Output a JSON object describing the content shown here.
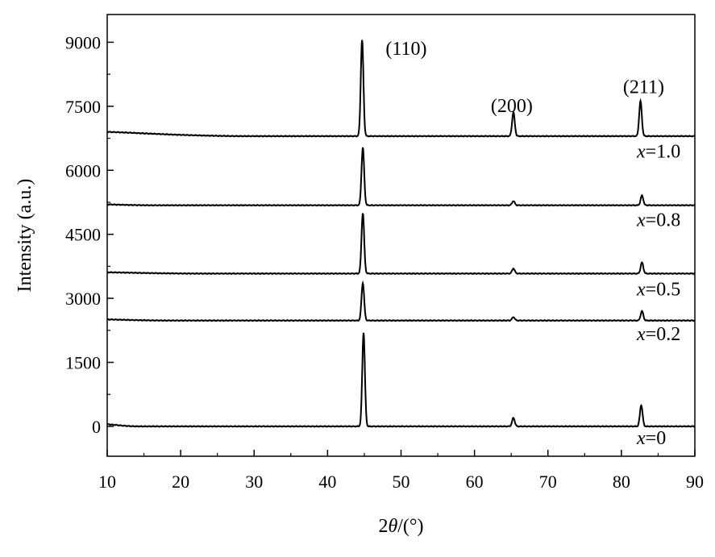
{
  "chart_data": {
    "type": "line",
    "xlabel": "2θ/(°)",
    "ylabel": "Intensity (a.u.)",
    "xlim": [
      10,
      90
    ],
    "ylim": [
      -700,
      9650
    ],
    "x_ticks": [
      "10",
      "20",
      "30",
      "40",
      "50",
      "60",
      "70",
      "80",
      "90"
    ],
    "y_ticks": [
      "0",
      "1500",
      "3000",
      "4500",
      "6000",
      "7500",
      "9000"
    ],
    "grid": false,
    "legend": "none",
    "peak_labels": [
      {
        "text": "(110)",
        "x": 45,
        "y": 9050
      },
      {
        "text": "(200)",
        "x": 65.3,
        "y": 7700
      },
      {
        "text": "(211)",
        "x": 82.7,
        "y": 8150
      }
    ],
    "series": [
      {
        "name": "x=0",
        "baseline": 0,
        "peaks": [
          {
            "x": 44.9,
            "height": 2200
          },
          {
            "x": 65.3,
            "height": 200
          },
          {
            "x": 82.7,
            "height": 500
          }
        ],
        "low_angle_hump": {
          "from": 10,
          "to": 14,
          "height": 50
        }
      },
      {
        "name": "x=0.2",
        "baseline": 2480,
        "peaks": [
          {
            "x": 44.8,
            "height": 880
          },
          {
            "x": 65.3,
            "height": 80
          },
          {
            "x": 82.8,
            "height": 220
          }
        ],
        "low_angle_hump": {
          "from": 10,
          "to": 18,
          "height": 25
        }
      },
      {
        "name": "x=0.5",
        "baseline": 3580,
        "peaks": [
          {
            "x": 44.8,
            "height": 1420
          },
          {
            "x": 65.3,
            "height": 120
          },
          {
            "x": 82.8,
            "height": 260
          }
        ],
        "low_angle_hump": {
          "from": 10,
          "to": 22,
          "height": 30
        }
      },
      {
        "name": "x=0.8",
        "baseline": 5180,
        "peaks": [
          {
            "x": 44.8,
            "height": 1350
          },
          {
            "x": 65.3,
            "height": 100
          },
          {
            "x": 82.8,
            "height": 230
          }
        ],
        "low_angle_hump": {
          "from": 10,
          "to": 16,
          "height": 20
        }
      },
      {
        "name": "x=1.0",
        "baseline": 6800,
        "peaks": [
          {
            "x": 44.7,
            "height": 2250
          },
          {
            "x": 65.3,
            "height": 560
          },
          {
            "x": 82.6,
            "height": 820
          }
        ],
        "low_angle_hump": {
          "from": 10,
          "to": 28,
          "height": 100
        }
      }
    ]
  }
}
